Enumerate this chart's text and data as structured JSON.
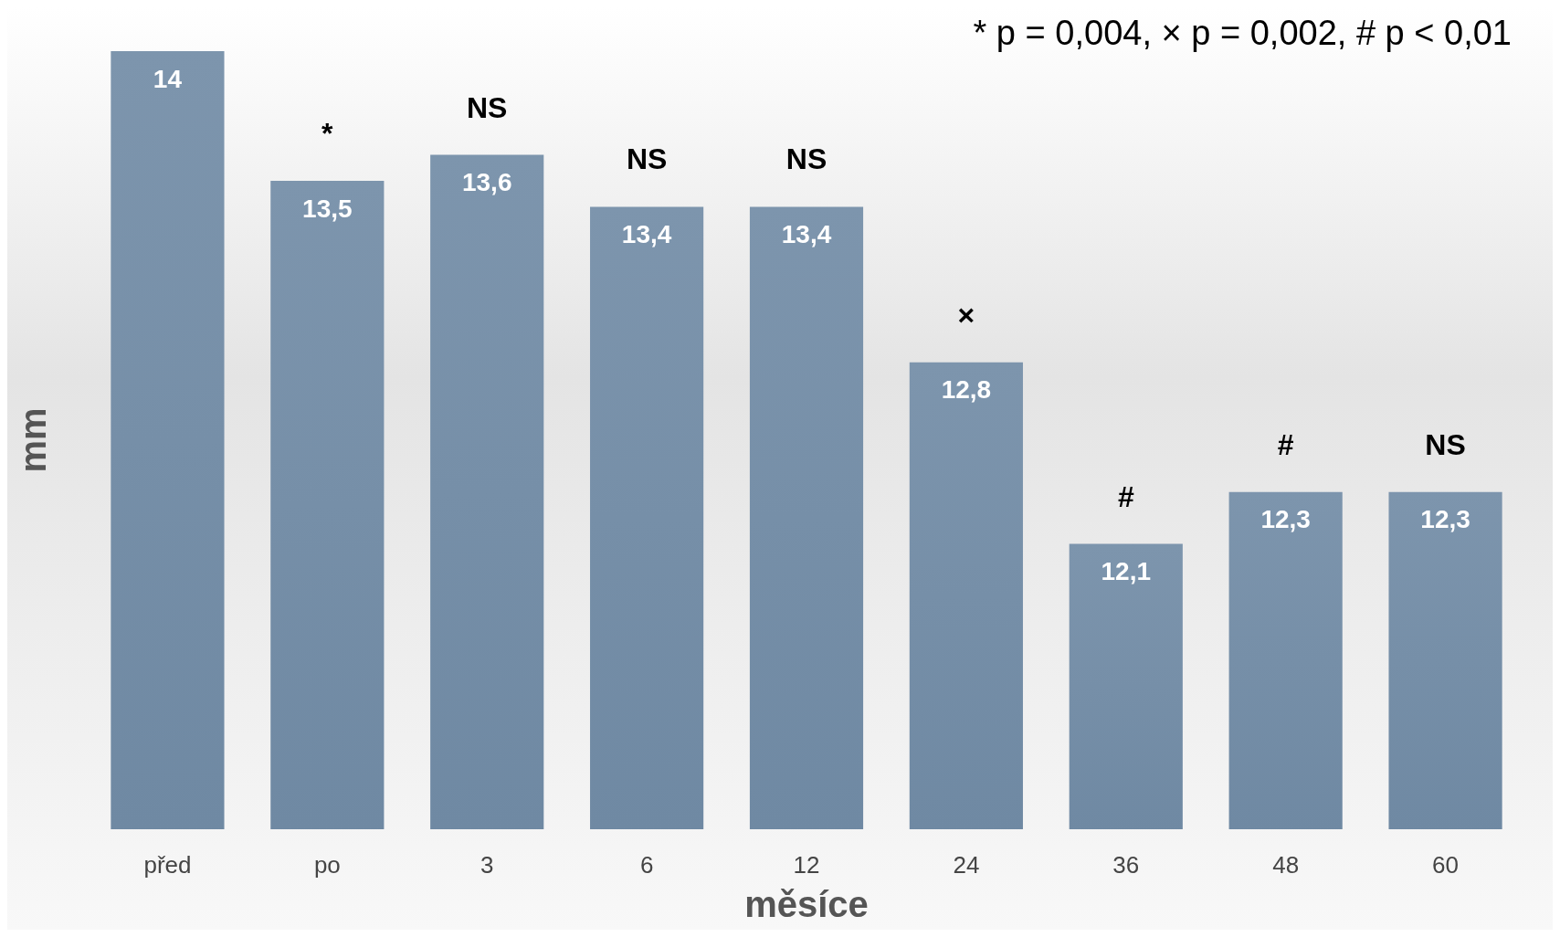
{
  "chart_data": {
    "type": "bar",
    "xlabel": "měsíce",
    "ylabel": "mm",
    "categories": [
      "před",
      "po",
      "3",
      "6",
      "12",
      "24",
      "36",
      "48",
      "60"
    ],
    "values": [
      14,
      13.5,
      13.6,
      13.4,
      13.4,
      12.8,
      12.1,
      12.3,
      12.3
    ],
    "value_labels": [
      "14",
      "13,5",
      "13,6",
      "13,4",
      "13,4",
      "12,8",
      "12,1",
      "12,3",
      "12,3"
    ],
    "color": "#6f89a3",
    "ylim": [
      11,
      14
    ],
    "tick_labels": "x",
    "annotations": [
      "* p = 0,004, × p = 0,002, # p < 0,01",
      {
        "text": "*",
        "x": "po",
        "y": 13.5
      },
      {
        "text": "NS",
        "x": "3",
        "y": 13.6
      },
      {
        "text": "NS",
        "x": "6",
        "y": 13.4
      },
      {
        "text": "NS",
        "x": "12",
        "y": 13.4
      },
      {
        "text": "×",
        "x": "24",
        "y": 12.8
      },
      {
        "text": "#",
        "x": "36",
        "y": 12.1
      },
      {
        "text": "#",
        "x": "48",
        "y": 12.3
      },
      {
        "text": "NS",
        "x": "60",
        "y": 12.3
      }
    ]
  }
}
